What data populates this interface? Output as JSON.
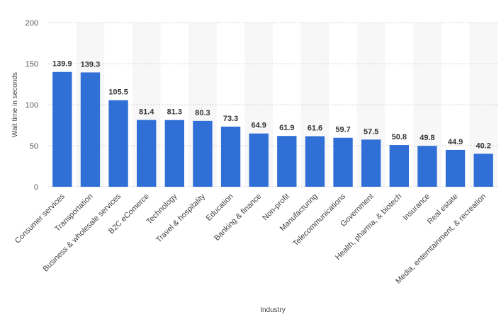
{
  "chart_data": {
    "type": "bar",
    "title": "",
    "xlabel": "Industry",
    "ylabel": "Wait time in seconds",
    "ylim": [
      0,
      200
    ],
    "yticks": [
      0,
      50,
      100,
      150,
      200
    ],
    "grid": true,
    "bar_color": "#2f6fd6",
    "categories": [
      "Consumer services",
      "Transportation",
      "Business & wholesale services",
      "B2C eComerce",
      "Technology",
      "Travel & hospitality",
      "Education",
      "Banking & finance",
      "Non-profit",
      "Manufacturing",
      "Telecommunications",
      "Government",
      "Health, pharma, & biotech",
      "Insurance",
      "Real estate",
      "Media, enterntainment, & recreation"
    ],
    "values": [
      139.9,
      139.3,
      105.5,
      81.4,
      81.3,
      80.3,
      73.3,
      64.9,
      61.9,
      61.6,
      59.7,
      57.5,
      50.8,
      49.8,
      44.9,
      40.2
    ]
  }
}
